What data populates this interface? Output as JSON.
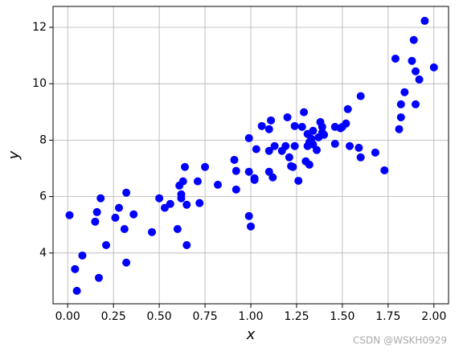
{
  "chart_data": {
    "type": "scatter",
    "xlabel": "x",
    "ylabel": "y",
    "watermark": "CSDN @WSKH0929",
    "color": "#0000ff",
    "grid": true,
    "xlim": [
      -0.08,
      2.08
    ],
    "ylim": [
      2.2,
      12.74
    ],
    "xticks": [
      {
        "value": 0,
        "label": "0.00"
      },
      {
        "value": 0.25,
        "label": "0.25"
      },
      {
        "value": 0.5,
        "label": "0.50"
      },
      {
        "value": 0.75,
        "label": "0.75"
      },
      {
        "value": 1,
        "label": "1.00"
      },
      {
        "value": 1.25,
        "label": "1.25"
      },
      {
        "value": 1.5,
        "label": "1.50"
      },
      {
        "value": 1.75,
        "label": "1.75"
      },
      {
        "value": 2,
        "label": "2.00"
      }
    ],
    "yticks": [
      4,
      6,
      8,
      10,
      12
    ],
    "x": [
      0.01,
      0.04,
      0.05,
      0.08,
      0.15,
      0.16,
      0.17,
      0.18,
      0.21,
      0.26,
      0.28,
      0.31,
      0.32,
      0.32,
      0.36,
      0.46,
      0.5,
      0.53,
      0.56,
      0.6,
      0.61,
      0.62,
      0.62,
      0.63,
      0.64,
      0.65,
      0.65,
      0.71,
      0.72,
      0.75,
      0.82,
      0.91,
      0.92,
      0.92,
      0.99,
      0.99,
      0.99,
      1.0,
      1.02,
      1.02,
      1.03,
      1.06,
      1.1,
      1.1,
      1.1,
      1.11,
      1.12,
      1.13,
      1.17,
      1.19,
      1.2,
      1.21,
      1.22,
      1.23,
      1.24,
      1.24,
      1.26,
      1.28,
      1.29,
      1.3,
      1.31,
      1.31,
      1.32,
      1.32,
      1.33,
      1.34,
      1.34,
      1.36,
      1.37,
      1.38,
      1.39,
      1.39,
      1.4,
      1.46,
      1.46,
      1.49,
      1.5,
      1.52,
      1.53,
      1.54,
      1.59,
      1.6,
      1.6,
      1.68,
      1.73,
      1.79,
      1.81,
      1.82,
      1.82,
      1.84,
      1.88,
      1.89,
      1.9,
      1.9,
      1.92,
      1.95,
      2.0
    ],
    "y": [
      5.34,
      3.43,
      2.66,
      3.91,
      5.11,
      5.45,
      3.12,
      5.94,
      4.28,
      5.25,
      5.6,
      4.85,
      6.14,
      3.66,
      5.37,
      4.74,
      5.94,
      5.6,
      5.74,
      4.85,
      6.39,
      6.08,
      5.94,
      6.54,
      7.05,
      5.71,
      4.28,
      6.54,
      5.77,
      7.05,
      6.42,
      7.3,
      6.91,
      6.25,
      8.07,
      6.88,
      5.31,
      4.94,
      6.65,
      6.59,
      7.68,
      8.5,
      6.88,
      8.39,
      7.62,
      8.7,
      6.68,
      7.79,
      7.62,
      7.79,
      8.81,
      7.39,
      7.08,
      7.05,
      7.79,
      8.5,
      6.56,
      8.47,
      8.99,
      7.25,
      7.79,
      8.22,
      7.93,
      7.13,
      8.05,
      7.85,
      8.33,
      7.65,
      8.1,
      8.64,
      8.47,
      8.27,
      8.19,
      7.87,
      8.47,
      8.42,
      8.47,
      8.59,
      9.1,
      7.79,
      7.73,
      7.39,
      9.56,
      7.56,
      6.93,
      10.89,
      8.39,
      8.81,
      9.27,
      9.7,
      10.81,
      11.55,
      10.44,
      9.27,
      10.15,
      12.23,
      10.58
    ]
  }
}
